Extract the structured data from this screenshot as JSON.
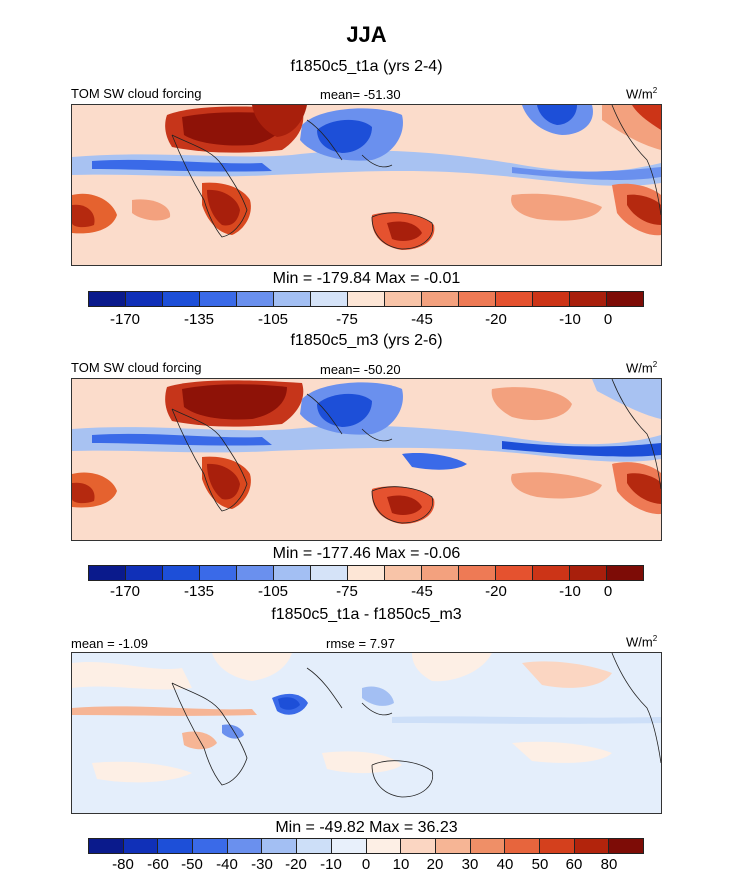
{
  "title": "JJA",
  "panels": [
    {
      "title": "f1850c5_t1a (yrs 2-4)",
      "left_label": "TOM SW cloud forcing",
      "center_label": "mean= -51.30",
      "units_base": "W/m",
      "units_exp": "2",
      "minmax": "Min = -179.84 Max =  -0.01",
      "colorbar_ticks": [
        "-170",
        "-135",
        "-105",
        "-75",
        "-45",
        "-20",
        "-10",
        "0"
      ]
    },
    {
      "title": "f1850c5_m3 (yrs 2-6)",
      "left_label": "TOM SW cloud forcing",
      "center_label": "mean= -50.20",
      "units_base": "W/m",
      "units_exp": "2",
      "minmax": "Min = -177.46 Max =  -0.06",
      "colorbar_ticks": [
        "-170",
        "-135",
        "-105",
        "-75",
        "-45",
        "-20",
        "-10",
        "0"
      ]
    },
    {
      "title": "f1850c5_t1a - f1850c5_m3",
      "left_label": "mean =  -1.09",
      "center_label": "rmse =   7.97",
      "units_base": "W/m",
      "units_exp": "2",
      "minmax": "Min = -49.82 Max =  36.23",
      "colorbar_ticks": [
        "-80",
        "-60",
        "-50",
        "-40",
        "-30",
        "-20",
        "-10",
        "0",
        "10",
        "20",
        "30",
        "40",
        "50",
        "60",
        "80"
      ]
    }
  ],
  "colorbar_colors_abs": [
    "#0a1a8c",
    "#1030b8",
    "#1d4fd8",
    "#3a6ae8",
    "#6a90ee",
    "#a3bff3",
    "#d5e3f8",
    "#fde6d6",
    "#f8c4a8",
    "#f3a17e",
    "#ee7a55",
    "#e5522f",
    "#cc3417",
    "#a81f0c",
    "#7d0c06"
  ],
  "colorbar_colors_diff": [
    "#0a1a8c",
    "#1030b8",
    "#1d4fd8",
    "#3a6ae8",
    "#6a90ee",
    "#a3bff3",
    "#cddff8",
    "#e8f0fb",
    "#fdefe5",
    "#fbd6c2",
    "#f6b595",
    "#ef8f67",
    "#e7653d",
    "#d4401d",
    "#b2240c",
    "#7d0c06"
  ],
  "chart_data": {
    "type": "heatmap",
    "season": "JJA",
    "variable": "TOM SW cloud forcing",
    "units": "W/m2",
    "maps": [
      {
        "title": "f1850c5_t1a (yrs 2-4)",
        "mean": -51.3,
        "min": -179.84,
        "max": -0.01,
        "levels": [
          -170,
          -135,
          -105,
          -75,
          -45,
          -20,
          -10,
          0
        ]
      },
      {
        "title": "f1850c5_m3 (yrs 2-6)",
        "mean": -50.2,
        "min": -177.46,
        "max": -0.06,
        "levels": [
          -170,
          -135,
          -105,
          -75,
          -45,
          -20,
          -10,
          0
        ]
      },
      {
        "title": "f1850c5_t1a - f1850c5_m3",
        "mean": -1.09,
        "rmse": 7.97,
        "min": -49.82,
        "max": 36.23,
        "levels": [
          -80,
          -60,
          -50,
          -40,
          -30,
          -20,
          -10,
          0,
          10,
          20,
          30,
          40,
          50,
          60,
          80
        ]
      }
    ]
  }
}
